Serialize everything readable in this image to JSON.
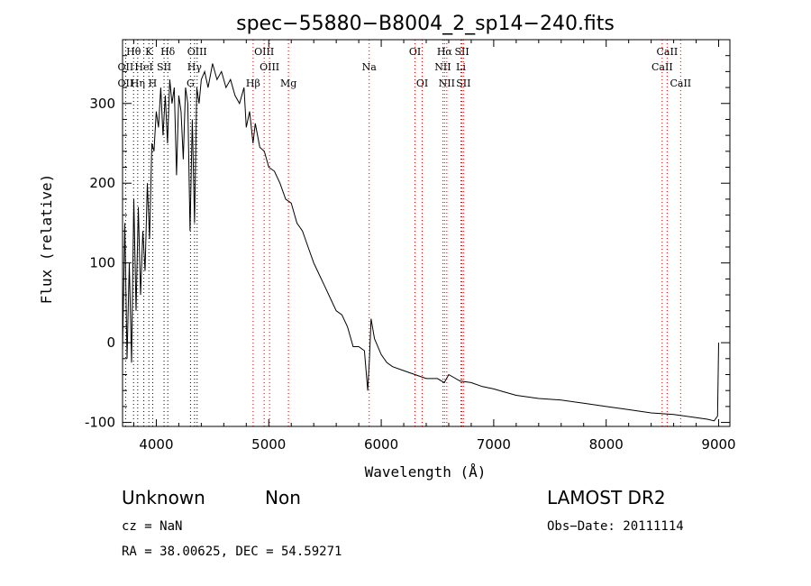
{
  "chart_data": {
    "type": "line",
    "title": "spec−55880−B8004_2_sp14−240.fits",
    "xlabel": "Wavelength (Å)",
    "ylabel": "Flux (relative)",
    "xlim": [
      3700,
      9100
    ],
    "ylim": [
      -105,
      380
    ],
    "xticks": [
      4000,
      5000,
      6000,
      7000,
      8000,
      9000
    ],
    "yticks": [
      -100,
      0,
      100,
      200,
      300
    ],
    "grid": false,
    "series": [
      {
        "values_x": [
          3700,
          3720,
          3740,
          3760,
          3780,
          3800,
          3820,
          3840,
          3860,
          3880,
          3900,
          3920,
          3940,
          3960,
          3980,
          4000,
          4020,
          4040,
          4060,
          4080,
          4100,
          4120,
          4140,
          4160,
          4180,
          4200,
          4220,
          4240,
          4260,
          4280,
          4300,
          4320,
          4340,
          4360,
          4380,
          4400,
          4430,
          4460,
          4500,
          4540,
          4580,
          4620,
          4660,
          4700,
          4740,
          4780,
          4800,
          4830,
          4860,
          4880,
          4920,
          4960,
          5000,
          5050,
          5100,
          5150,
          5200,
          5250,
          5300,
          5350,
          5400,
          5450,
          5500,
          5550,
          5600,
          5650,
          5700,
          5750,
          5800,
          5850,
          5880,
          5895,
          5910,
          5940,
          6000,
          6050,
          6100,
          6200,
          6300,
          6400,
          6500,
          6560,
          6600,
          6700,
          6800,
          6900,
          7000,
          7100,
          7200,
          7400,
          7600,
          7800,
          8000,
          8200,
          8400,
          8600,
          8800,
          8900,
          8960,
          8990,
          9000
        ],
        "values_y": [
          -10,
          150,
          -20,
          100,
          -25,
          180,
          40,
          170,
          60,
          140,
          90,
          200,
          130,
          250,
          240,
          290,
          270,
          320,
          260,
          310,
          250,
          330,
          300,
          320,
          210,
          310,
          290,
          230,
          320,
          300,
          140,
          280,
          150,
          320,
          300,
          330,
          340,
          320,
          350,
          330,
          340,
          320,
          330,
          310,
          300,
          320,
          270,
          290,
          250,
          275,
          245,
          240,
          220,
          215,
          200,
          180,
          175,
          150,
          140,
          120,
          100,
          85,
          70,
          55,
          40,
          35,
          20,
          -5,
          -5,
          -10,
          -60,
          -20,
          30,
          5,
          -15,
          -25,
          -30,
          -35,
          -40,
          -45,
          -45,
          -50,
          -40,
          -48,
          -50,
          -55,
          -58,
          -62,
          -66,
          -70,
          -72,
          -76,
          -80,
          -84,
          -88,
          -90,
          -94,
          -96,
          -98,
          -92,
          0
        ]
      }
    ],
    "lines": [
      {
        "name": "Hθ",
        "x": 3798,
        "color": "#000",
        "row": 0
      },
      {
        "name": "K",
        "x": 3934,
        "color": "#000",
        "row": 0
      },
      {
        "name": "Hδ",
        "x": 4102,
        "color": "#000",
        "row": 0
      },
      {
        "name": "OIII",
        "x": 4363,
        "color": "#000",
        "row": 0
      },
      {
        "name": "OIII",
        "x": 4959,
        "color": "#c00",
        "row": 0
      },
      {
        "name": "OI",
        "x": 6300,
        "color": "#c00",
        "row": 0
      },
      {
        "name": "Hα",
        "x": 6563,
        "color": "#c00",
        "row": 0
      },
      {
        "name": "SII",
        "x": 6717,
        "color": "#c00",
        "row": 0
      },
      {
        "name": "CaII",
        "x": 8542,
        "color": "#c00",
        "row": 0
      },
      {
        "name": "OII",
        "x": 3727,
        "color": "#000",
        "row": 1
      },
      {
        "name": "HeI",
        "x": 3889,
        "color": "#000",
        "row": 1
      },
      {
        "name": "SII",
        "x": 4069,
        "color": "#000",
        "row": 1
      },
      {
        "name": "Hγ",
        "x": 4340,
        "color": "#000",
        "row": 1
      },
      {
        "name": "OIII",
        "x": 5007,
        "color": "#c00",
        "row": 1
      },
      {
        "name": "NII",
        "x": 6548,
        "color": "#c00",
        "row": 1
      },
      {
        "name": "Li",
        "x": 6708,
        "color": "#c00",
        "row": 1
      },
      {
        "name": "CaII",
        "x": 8498,
        "color": "#c00",
        "row": 1
      },
      {
        "name": "OII",
        "x": 3727,
        "color": "#000",
        "row": 2
      },
      {
        "name": "Hη",
        "x": 3835,
        "color": "#000",
        "row": 2
      },
      {
        "name": "H",
        "x": 3968,
        "color": "#000",
        "row": 2
      },
      {
        "name": "G",
        "x": 4304,
        "color": "#000",
        "row": 2
      },
      {
        "name": "Hβ",
        "x": 4861,
        "color": "#c00",
        "row": 2
      },
      {
        "name": "Mg",
        "x": 5175,
        "color": "#c00",
        "row": 2
      },
      {
        "name": "Na",
        "x": 5893,
        "color": "#c00",
        "row": 1
      },
      {
        "name": "OI",
        "x": 6364,
        "color": "#c00",
        "row": 2
      },
      {
        "name": "NII",
        "x": 6583,
        "color": "#c00",
        "row": 2
      },
      {
        "name": "SII",
        "x": 6731,
        "color": "#c00",
        "row": 2
      },
      {
        "name": "CaII",
        "x": 8662,
        "color": "#c00",
        "row": 2
      }
    ]
  },
  "info": {
    "class_label": "Unknown",
    "subclass_label": "Non",
    "survey": "LAMOST DR2",
    "cz": "cz = NaN",
    "obs_date": "Obs−Date: 20111114",
    "radec": "RA =   38.00625, DEC =   54.59271"
  }
}
